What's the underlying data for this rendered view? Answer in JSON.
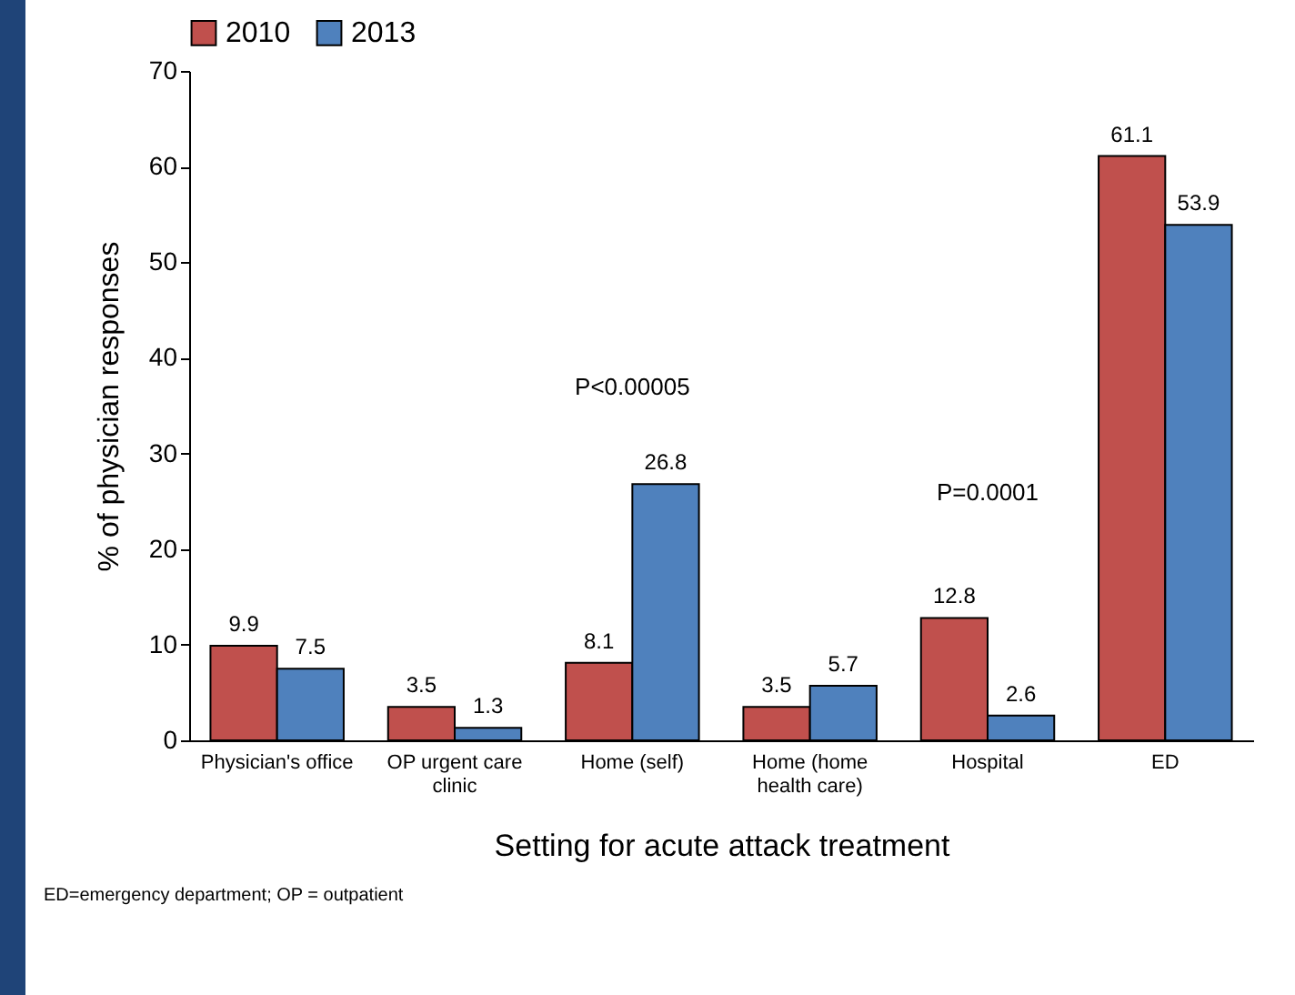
{
  "chart_data": {
    "type": "bar",
    "categories": [
      "Physician's office",
      "OP urgent care clinic",
      "Home (self)",
      "Home (home health care)",
      "Hospital",
      "ED"
    ],
    "series": [
      {
        "name": "2010",
        "color": "#c0504d",
        "values": [
          9.9,
          3.5,
          8.1,
          3.5,
          12.8,
          61.1
        ]
      },
      {
        "name": "2013",
        "color": "#4f81bd",
        "values": [
          7.5,
          1.3,
          26.8,
          5.7,
          2.6,
          53.9
        ]
      }
    ],
    "xlabel": "Setting for acute attack treatment",
    "ylabel": "% of physician responses",
    "ylim": [
      0,
      70
    ],
    "yticks": [
      0,
      10,
      20,
      30,
      40,
      50,
      60,
      70
    ],
    "data_labels": true,
    "legend": "top",
    "grid": false,
    "annotations": [
      "P<0.00005",
      "P=0.0001",
      "ED=emergency department; OP = outpatient"
    ]
  }
}
